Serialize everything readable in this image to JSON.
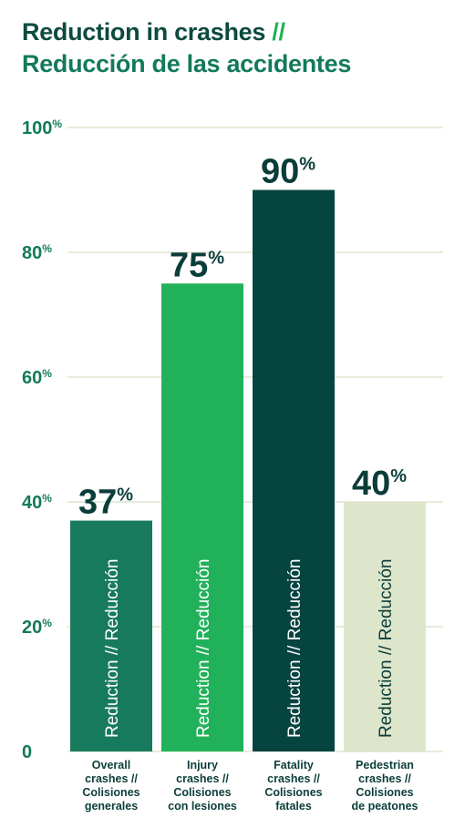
{
  "title": {
    "en": "Reduction in crashes",
    "separator": "//",
    "es": "Reducción de las accidentes"
  },
  "colors": {
    "title_en": "#0d4a3f",
    "title_es": "#137a5b",
    "separator": "#21b15a",
    "axis_text": "#137a5b",
    "grid": "#e6ecdc",
    "value_text": "#0b3d3a"
  },
  "chart_data": {
    "type": "bar",
    "categories": [
      "Overall crashes // Colisiones generales",
      "Injury crashes // Colisiones con lesiones",
      "Fatality crashes // Colisiones fatales",
      "Pedestrian crashes // Colisiones de peatones"
    ],
    "category_lines": [
      [
        "Overall",
        "crashes //",
        "Colisiones",
        "generales"
      ],
      [
        "Injury",
        "crashes //",
        "Colisiones",
        "con lesiones"
      ],
      [
        "Fatality",
        "crashes //",
        "Colisiones",
        "fatales"
      ],
      [
        "Pedestrian",
        "crashes //",
        "Colisiones",
        "de peatones"
      ]
    ],
    "values": [
      37,
      75,
      90,
      40
    ],
    "value_labels": [
      "37",
      "75",
      "90",
      "40"
    ],
    "value_suffix": "%",
    "bar_text": "Reduction // Reducción",
    "bar_colors": [
      "#187a5c",
      "#22b15b",
      "#064440",
      "#dde6cb"
    ],
    "bar_text_colors": [
      "#ffffff",
      "#ffffff",
      "#ffffff",
      "#0b3d3a"
    ],
    "ylim": [
      0,
      100
    ],
    "yticks": [
      0,
      20,
      40,
      60,
      80,
      100
    ],
    "ytick_labels": [
      "0",
      "20",
      "40",
      "60",
      "80",
      "100"
    ],
    "ytick_suffix": "%",
    "grid": true,
    "xlabel": "",
    "ylabel": ""
  }
}
